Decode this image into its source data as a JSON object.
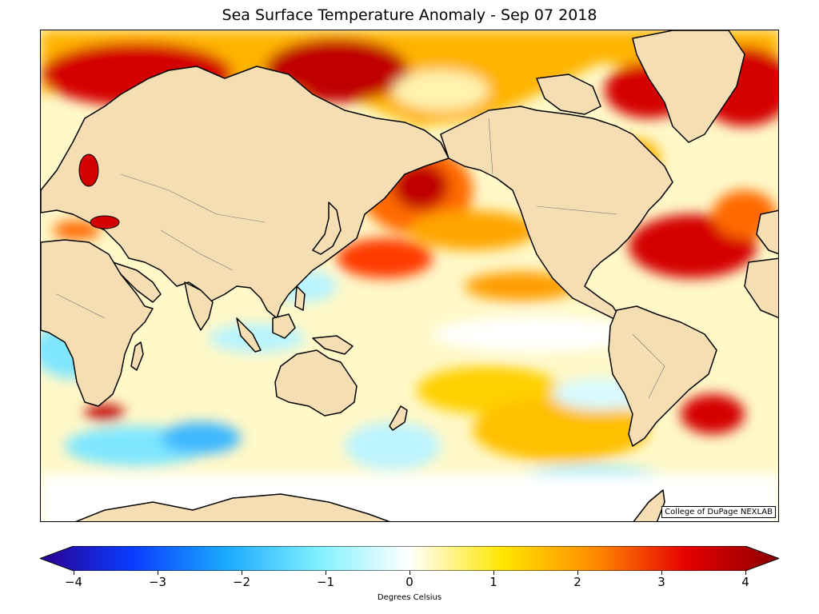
{
  "title": "Sea Surface Temperature Anomaly - Sep 07 2018",
  "credit": "College of DuPage NEXLAB",
  "colorbar": {
    "label": "Degrees Celsius",
    "min": -4,
    "max": 4,
    "ticks": [
      "−4",
      "−3",
      "−2",
      "−1",
      "0",
      "1",
      "2",
      "3",
      "4"
    ],
    "tick_values": [
      -4,
      -3,
      -2,
      -1,
      0,
      1,
      2,
      3,
      4
    ],
    "colors": [
      "#2c0091",
      "#0a3cff",
      "#1aa8ff",
      "#7ef0ff",
      "#ffffff",
      "#ffe600",
      "#ff8c00",
      "#e60000",
      "#8b0000"
    ]
  },
  "colors": {
    "land": "#f5deb3",
    "coast": "#000000",
    "warm": "#e60000",
    "hot": "#b30000",
    "orange": "#ff8c00",
    "yellow": "#ffe14d",
    "cool": "#9eeeff",
    "cold": "#28a8ff"
  }
}
